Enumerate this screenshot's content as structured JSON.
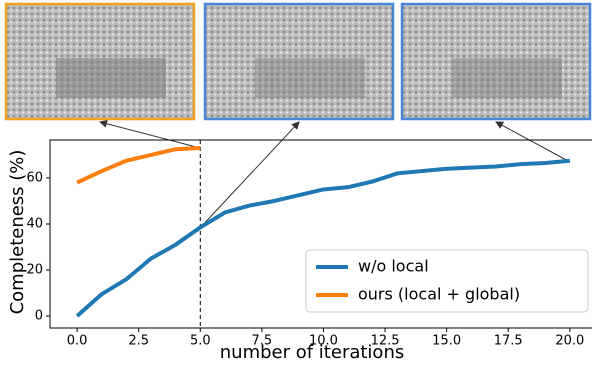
{
  "chart_data": {
    "type": "line",
    "xlabel": "number of iterations",
    "ylabel": "Completeness (%)",
    "series": [
      {
        "name": "w/o local",
        "color": "#1f77b4",
        "x": [
          0,
          1,
          2,
          3,
          4,
          5,
          6,
          7,
          8,
          9,
          10,
          11,
          12,
          13,
          14,
          15,
          16,
          17,
          18,
          19,
          20
        ],
        "values": [
          0,
          9.5,
          16,
          25,
          31,
          38.5,
          45,
          48,
          50,
          52.5,
          55,
          56,
          58.5,
          62,
          63,
          64,
          64.5,
          65,
          66,
          66.5,
          67.5
        ]
      },
      {
        "name": "ours (local + global)",
        "color": "#ff7f0e",
        "x": [
          0,
          1,
          2,
          3,
          4,
          5
        ],
        "values": [
          58,
          63,
          67.5,
          70,
          72.5,
          73
        ]
      }
    ],
    "xlim": [
      -1.1,
      20.9
    ],
    "ylim": [
      -5.2,
      76.5
    ],
    "xticks": [
      {
        "value": 0,
        "label": "0.0"
      },
      {
        "value": 2.5,
        "label": "2.5"
      },
      {
        "value": 5,
        "label": "5.0"
      },
      {
        "value": 7.5,
        "label": "7.5"
      },
      {
        "value": 10,
        "label": "10.0"
      },
      {
        "value": 12.5,
        "label": "12.5"
      },
      {
        "value": 15,
        "label": "15.0"
      },
      {
        "value": 17.5,
        "label": "17.5"
      },
      {
        "value": 20,
        "label": "20.0"
      }
    ],
    "yticks": [
      0,
      20,
      40,
      60
    ],
    "legend": "lower right"
  }
}
